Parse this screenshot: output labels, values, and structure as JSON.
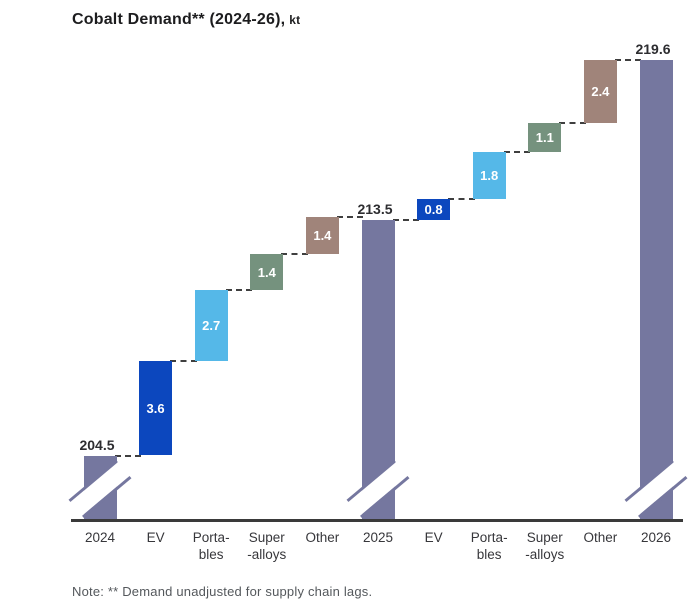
{
  "title": {
    "main": "Cobalt Demand** (2024-26),",
    "unit": "kt"
  },
  "note": "Note: ** Demand unadjusted for supply chain lags.",
  "colors": {
    "total": "#75779F",
    "ev": "#0C47BE",
    "portables": "#55B8E8",
    "superalloys": "#75927E",
    "other": "#A0847A",
    "axis": "#3A3A3A",
    "connector": "#3F3F3F",
    "value_text": "#FFFFFF",
    "total_label_text": "#2D2D30",
    "x_label_text": "#37373B",
    "note_text": "#54585C",
    "title_text": "#1C1C1E"
  },
  "chart_data": {
    "type": "bar",
    "subtype": "waterfall",
    "title": "Cobalt Demand** (2024-26)",
    "unit": "kt",
    "axis_break": true,
    "baseline_value": 202,
    "ylim": [
      202,
      221
    ],
    "grid": false,
    "legend": false,
    "note": "** Demand unadjusted for supply chain lags.",
    "bars": [
      {
        "category": "2024",
        "category_line2": "",
        "kind": "total",
        "value": 204.5,
        "label": "204.5",
        "color_key": "total"
      },
      {
        "category": "EV",
        "category_line2": "",
        "kind": "delta",
        "value": 3.6,
        "label": "3.6",
        "color_key": "ev"
      },
      {
        "category": "Porta-",
        "category_line2": "bles",
        "kind": "delta",
        "value": 2.7,
        "label": "2.7",
        "color_key": "portables"
      },
      {
        "category": "Super",
        "category_line2": "-alloys",
        "kind": "delta",
        "value": 1.4,
        "label": "1.4",
        "color_key": "superalloys"
      },
      {
        "category": "Other",
        "category_line2": "",
        "kind": "delta",
        "value": 1.4,
        "label": "1.4",
        "color_key": "other"
      },
      {
        "category": "2025",
        "category_line2": "",
        "kind": "total",
        "value": 213.5,
        "label": "213.5",
        "color_key": "total"
      },
      {
        "category": "EV",
        "category_line2": "",
        "kind": "delta",
        "value": 0.8,
        "label": "0.8",
        "color_key": "ev"
      },
      {
        "category": "Porta-",
        "category_line2": "bles",
        "kind": "delta",
        "value": 1.8,
        "label": "1.8",
        "color_key": "portables"
      },
      {
        "category": "Super",
        "category_line2": "-alloys",
        "kind": "delta",
        "value": 1.1,
        "label": "1.1",
        "color_key": "superalloys"
      },
      {
        "category": "Other",
        "category_line2": "",
        "kind": "delta",
        "value": 2.4,
        "label": "2.4",
        "color_key": "other"
      },
      {
        "category": "2026",
        "category_line2": "",
        "kind": "total",
        "value": 219.6,
        "label": "219.6",
        "color_key": "total"
      }
    ]
  }
}
